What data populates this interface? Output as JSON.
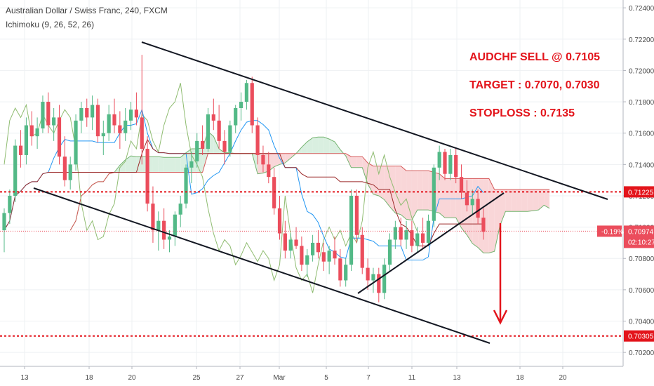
{
  "header": {
    "title": "Australian Dollar / Swiss Franc, 240, FXCM",
    "indicator": "Ichimoku (9, 26, 52, 26)"
  },
  "annotations": {
    "sell": "AUDCHF SELL @ 0.7105",
    "target": "TARGET : 0.7070, 0.7030",
    "stoploss": "STOPLOSS : 0.7135"
  },
  "colors": {
    "up": "#53b987",
    "down": "#eb4d5c",
    "red_line": "#e3141b",
    "cloud_bull": "#d9efe0",
    "cloud_bear": "#f9d6d8",
    "tenkan": "#2196f3",
    "kijun": "#9c2a2a",
    "chikou": "#8fbc71",
    "span_a": "#73b36f",
    "span_b": "#d65a5a"
  },
  "chart_data": {
    "type": "candlestick",
    "symbol": "Australian Dollar / Swiss Franc",
    "timeframe": "240",
    "y_axis": {
      "min": 0.7012,
      "max": 0.7245,
      "ticks": [
        "0.72400",
        "0.72200",
        "0.72000",
        "0.71800",
        "0.71600",
        "0.71400",
        "0.71200",
        "0.71000",
        "0.70800",
        "0.70600",
        "0.70400",
        "0.70200"
      ]
    },
    "x_ticks": [
      "13",
      "18",
      "20",
      "25",
      "27",
      "Mar",
      "5",
      "7",
      "11",
      "13",
      "18",
      "20"
    ],
    "price_levels": [
      {
        "label": "0.71225",
        "value": 0.71225
      },
      {
        "label": "0.70305",
        "value": 0.70305
      }
    ],
    "current_price": {
      "value": 0.70974,
      "label": "0.70974",
      "change": "-0.19%",
      "countdown": "02:10:27"
    },
    "candles": [
      [
        0.7098,
        0.7112,
        0.7084,
        0.7109
      ],
      [
        0.7109,
        0.7124,
        0.7102,
        0.712
      ],
      [
        0.712,
        0.7156,
        0.7116,
        0.7152
      ],
      [
        0.7152,
        0.7162,
        0.7138,
        0.7146
      ],
      [
        0.7146,
        0.717,
        0.714,
        0.7165
      ],
      [
        0.7165,
        0.7174,
        0.7152,
        0.7158
      ],
      [
        0.7158,
        0.717,
        0.715,
        0.7163
      ],
      [
        0.7163,
        0.7184,
        0.716,
        0.718
      ],
      [
        0.718,
        0.7186,
        0.716,
        0.7165
      ],
      [
        0.7165,
        0.7176,
        0.7155,
        0.717
      ],
      [
        0.717,
        0.7178,
        0.714,
        0.7145
      ],
      [
        0.7145,
        0.7158,
        0.7126,
        0.713
      ],
      [
        0.713,
        0.7145,
        0.7124,
        0.714
      ],
      [
        0.714,
        0.7172,
        0.7136,
        0.7168
      ],
      [
        0.7168,
        0.718,
        0.716,
        0.7176
      ],
      [
        0.7176,
        0.7182,
        0.7164,
        0.717
      ],
      [
        0.717,
        0.7184,
        0.7162,
        0.7178
      ],
      [
        0.7178,
        0.7182,
        0.7154,
        0.7158
      ],
      [
        0.7158,
        0.7168,
        0.7146,
        0.716
      ],
      [
        0.716,
        0.7178,
        0.7155,
        0.7172
      ],
      [
        0.7172,
        0.7182,
        0.716,
        0.7165
      ],
      [
        0.7165,
        0.7174,
        0.715,
        0.716
      ],
      [
        0.716,
        0.7176,
        0.7155,
        0.7168
      ],
      [
        0.7168,
        0.718,
        0.7162,
        0.7175
      ],
      [
        0.7175,
        0.7186,
        0.7165,
        0.717
      ],
      [
        0.717,
        0.721,
        0.714,
        0.715
      ],
      [
        0.715,
        0.7158,
        0.711,
        0.7115
      ],
      [
        0.7115,
        0.7126,
        0.709,
        0.7098
      ],
      [
        0.7098,
        0.711,
        0.7085,
        0.7104
      ],
      [
        0.7104,
        0.7112,
        0.7086,
        0.7092
      ],
      [
        0.7092,
        0.7098,
        0.7084,
        0.7094
      ],
      [
        0.7094,
        0.711,
        0.7088,
        0.7108
      ],
      [
        0.7108,
        0.712,
        0.71,
        0.7115
      ],
      [
        0.7115,
        0.714,
        0.7112,
        0.7138
      ],
      [
        0.7138,
        0.7148,
        0.7128,
        0.7142
      ],
      [
        0.7142,
        0.716,
        0.7138,
        0.7155
      ],
      [
        0.7155,
        0.7165,
        0.7146,
        0.715
      ],
      [
        0.715,
        0.7176,
        0.7148,
        0.7172
      ],
      [
        0.7172,
        0.7182,
        0.7162,
        0.7168
      ],
      [
        0.7168,
        0.7178,
        0.715,
        0.7155
      ],
      [
        0.7155,
        0.7162,
        0.714,
        0.7148
      ],
      [
        0.7148,
        0.7168,
        0.7145,
        0.7165
      ],
      [
        0.7165,
        0.7178,
        0.716,
        0.7176
      ],
      [
        0.7176,
        0.7186,
        0.7168,
        0.718
      ],
      [
        0.718,
        0.7194,
        0.7175,
        0.7192
      ],
      [
        0.7192,
        0.7196,
        0.716,
        0.7165
      ],
      [
        0.7165,
        0.717,
        0.714,
        0.7146
      ],
      [
        0.7146,
        0.7152,
        0.7135,
        0.714
      ],
      [
        0.714,
        0.7148,
        0.7128,
        0.7132
      ],
      [
        0.7132,
        0.7138,
        0.7108,
        0.7112
      ],
      [
        0.7112,
        0.712,
        0.7092,
        0.7096
      ],
      [
        0.7096,
        0.7104,
        0.708,
        0.7085
      ],
      [
        0.7085,
        0.7096,
        0.708,
        0.7092
      ],
      [
        0.7092,
        0.71,
        0.7086,
        0.7088
      ],
      [
        0.7088,
        0.7094,
        0.7072,
        0.7076
      ],
      [
        0.7076,
        0.7086,
        0.7068,
        0.7082
      ],
      [
        0.7082,
        0.7095,
        0.7078,
        0.709
      ],
      [
        0.709,
        0.7098,
        0.708,
        0.7084
      ],
      [
        0.7084,
        0.709,
        0.7072,
        0.7078
      ],
      [
        0.7078,
        0.7088,
        0.707,
        0.7085
      ],
      [
        0.7085,
        0.7094,
        0.7076,
        0.708
      ],
      [
        0.708,
        0.7086,
        0.7062,
        0.7066
      ],
      [
        0.7066,
        0.708,
        0.7062,
        0.7076
      ],
      [
        0.7076,
        0.7124,
        0.7072,
        0.712
      ],
      [
        0.712,
        0.7124,
        0.709,
        0.7095
      ],
      [
        0.7095,
        0.71,
        0.707,
        0.7074
      ],
      [
        0.7074,
        0.708,
        0.706,
        0.7066
      ],
      [
        0.7066,
        0.7074,
        0.7058,
        0.707
      ],
      [
        0.707,
        0.7074,
        0.7052,
        0.7058
      ],
      [
        0.7058,
        0.708,
        0.7054,
        0.7076
      ],
      [
        0.7076,
        0.7096,
        0.7072,
        0.7092
      ],
      [
        0.7092,
        0.7104,
        0.7086,
        0.71
      ],
      [
        0.71,
        0.7106,
        0.7088,
        0.7092
      ],
      [
        0.7092,
        0.7104,
        0.7086,
        0.7098
      ],
      [
        0.7098,
        0.7104,
        0.7084,
        0.7088
      ],
      [
        0.7088,
        0.71,
        0.7084,
        0.7096
      ],
      [
        0.7096,
        0.7106,
        0.7086,
        0.709
      ],
      [
        0.709,
        0.7108,
        0.7088,
        0.7104
      ],
      [
        0.7104,
        0.714,
        0.71,
        0.7138
      ],
      [
        0.7138,
        0.7152,
        0.713,
        0.7148
      ],
      [
        0.7148,
        0.715,
        0.713,
        0.7134
      ],
      [
        0.7134,
        0.715,
        0.713,
        0.7146
      ],
      [
        0.7146,
        0.715,
        0.7128,
        0.7132
      ],
      [
        0.7132,
        0.714,
        0.7118,
        0.7122
      ],
      [
        0.7122,
        0.713,
        0.711,
        0.7114
      ],
      [
        0.7114,
        0.7124,
        0.7108,
        0.7118
      ],
      [
        0.7118,
        0.7124,
        0.7102,
        0.7106
      ],
      [
        0.7106,
        0.7112,
        0.7092,
        0.7097
      ]
    ]
  }
}
